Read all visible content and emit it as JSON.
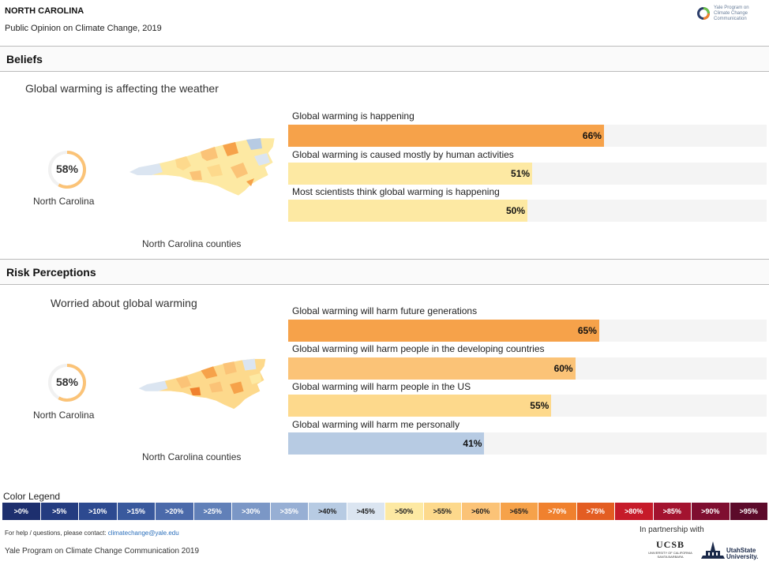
{
  "header": {
    "title": "NORTH CAROLINA",
    "subtitle": "Public Opinion on Climate Change, 2019",
    "logo_text": "Yale Program on\nClimate Change\nCommunication"
  },
  "sections": [
    {
      "title": "Beliefs",
      "lead_question": "Global warming is affecting the weather",
      "gauge_value": "58%",
      "gauge_fraction": 0.58,
      "location_label": "North Carolina",
      "map_caption": "North Carolina counties",
      "bars": [
        {
          "label": "Global warming is happening",
          "value_text": "66%",
          "value": 66,
          "color": "#f6a24a"
        },
        {
          "label": "Global warming is caused mostly by human activities",
          "value_text": "51%",
          "value": 51,
          "color": "#fde9a3"
        },
        {
          "label": "Most scientists think global warming is happening",
          "value_text": "50%",
          "value": 50,
          "color": "#fde9a3"
        }
      ]
    },
    {
      "title": "Risk Perceptions",
      "lead_question": "Worried about global warming",
      "gauge_value": "58%",
      "gauge_fraction": 0.58,
      "location_label": "North Carolina",
      "map_caption": "North Carolina counties",
      "bars": [
        {
          "label": "Global warming will harm future generations",
          "value_text": "65%",
          "value": 65,
          "color": "#f6a24a"
        },
        {
          "label": "Global warming will harm people in the developing countries",
          "value_text": "60%",
          "value": 60,
          "color": "#fbc377"
        },
        {
          "label": "Global warming will harm people in the US",
          "value_text": "55%",
          "value": 55,
          "color": "#fdd98c"
        },
        {
          "label": "Global warming will harm me personally",
          "value_text": "41%",
          "value": 41,
          "color": "#b7cbe3"
        }
      ]
    }
  ],
  "legend": {
    "title": "Color Legend",
    "items": [
      {
        "label": ">0%",
        "bg": "#1d2f6e",
        "fg": "#ffffff"
      },
      {
        "label": ">5%",
        "bg": "#243c80",
        "fg": "#ffffff"
      },
      {
        "label": ">10%",
        "bg": "#2d4a90",
        "fg": "#ffffff"
      },
      {
        "label": ">15%",
        "bg": "#39599d",
        "fg": "#ffffff"
      },
      {
        "label": ">20%",
        "bg": "#4b6aaa",
        "fg": "#ffffff"
      },
      {
        "label": ">25%",
        "bg": "#6180b8",
        "fg": "#ffffff"
      },
      {
        "label": ">30%",
        "bg": "#7b97c6",
        "fg": "#ffffff"
      },
      {
        "label": ">35%",
        "bg": "#97afd4",
        "fg": "#ffffff"
      },
      {
        "label": ">40%",
        "bg": "#b7cbe3",
        "fg": "#222222"
      },
      {
        "label": ">45%",
        "bg": "#dbe5f1",
        "fg": "#222222"
      },
      {
        "label": ">50%",
        "bg": "#fde9a3",
        "fg": "#222222"
      },
      {
        "label": ">55%",
        "bg": "#fdd98c",
        "fg": "#222222"
      },
      {
        "label": ">60%",
        "bg": "#fbc377",
        "fg": "#222222"
      },
      {
        "label": ">65%",
        "bg": "#f6a24a",
        "fg": "#222222"
      },
      {
        "label": ">70%",
        "bg": "#f0812e",
        "fg": "#ffffff"
      },
      {
        "label": ">75%",
        "bg": "#e35d22",
        "fg": "#ffffff"
      },
      {
        "label": ">80%",
        "bg": "#c61b2a",
        "fg": "#ffffff"
      },
      {
        "label": ">85%",
        "bg": "#a3132f",
        "fg": "#ffffff"
      },
      {
        "label": ">90%",
        "bg": "#7f0e30",
        "fg": "#ffffff"
      },
      {
        "label": ">95%",
        "bg": "#5c0a2a",
        "fg": "#ffffff"
      }
    ]
  },
  "footer": {
    "help_prefix": "For help / questions, please contact: ",
    "help_email": "climatechange@yale.edu",
    "credit": "Yale Program on Climate Change Communication 2019",
    "partner_label": "In partnership with",
    "ucsb_mark": "UCSB",
    "ucsb_sub": "UNIVERSITY OF CALIFORNIA\nSANTA BARBARA",
    "usu_text": "UtahState\nUniversity."
  },
  "colors": {
    "gauge_ring": "#fbc377",
    "gauge_track": "#f1f1f1"
  }
}
